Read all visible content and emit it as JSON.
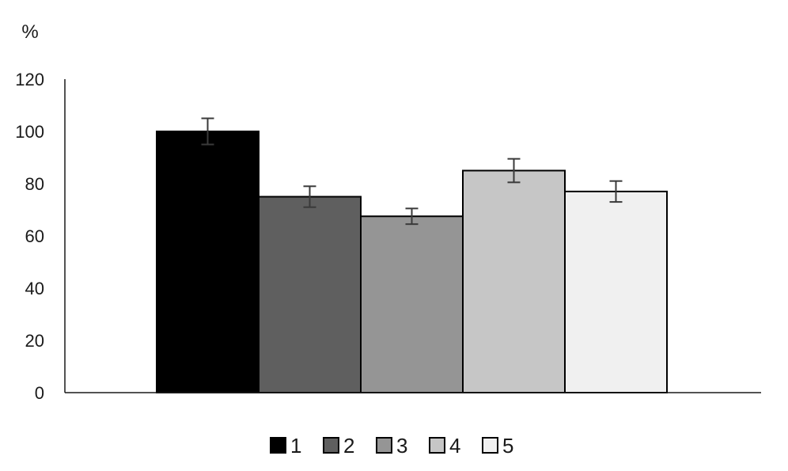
{
  "chart_data": {
    "type": "bar",
    "ylabel": "%",
    "ylim": [
      0,
      120
    ],
    "yticks": [
      0,
      20,
      40,
      60,
      80,
      100,
      120
    ],
    "grid": false,
    "legend_position": "bottom",
    "series": [
      {
        "name": "1",
        "value": 100,
        "error": 5,
        "color": "#000000"
      },
      {
        "name": "2",
        "value": 75,
        "error": 4,
        "color": "#5f5f5f"
      },
      {
        "name": "3",
        "value": 67.5,
        "error": 3,
        "color": "#959595"
      },
      {
        "name": "4",
        "value": 85,
        "error": 4.5,
        "color": "#c6c6c6"
      },
      {
        "name": "5",
        "value": 77,
        "error": 4,
        "color": "#f0f0f0"
      }
    ]
  }
}
